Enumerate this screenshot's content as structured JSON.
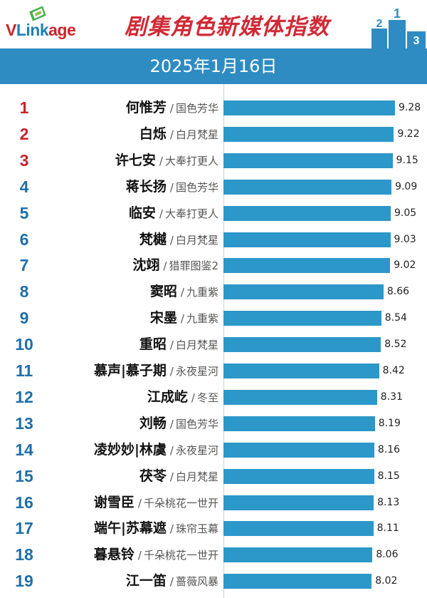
{
  "header": {
    "logo_v": "V",
    "logo_link": "Link",
    "logo_age": "age",
    "title": "剧集角色新媒体指数",
    "podium_first": "1",
    "podium_second": "2",
    "podium_third": "3"
  },
  "date": "2025年1月16日",
  "colors": {
    "title_red": "#d02a36",
    "date_bar": "#2f8cc2",
    "bar": "#2c97c9",
    "rank_top": "#c8242b",
    "rank_other": "#1f6fa8"
  },
  "chart_data": {
    "type": "bar",
    "orientation": "horizontal",
    "title": "剧集角色新媒体指数",
    "subtitle": "2025年1月16日",
    "xlabel": "",
    "ylabel": "",
    "xlim": [
      0,
      9.6
    ],
    "grid": false,
    "legend": "none",
    "rows": [
      {
        "rank": "1",
        "name": "何惟芳",
        "drama": "国色芳华",
        "value": 9.28
      },
      {
        "rank": "2",
        "name": "白烁",
        "drama": "白月梵星",
        "value": 9.22
      },
      {
        "rank": "3",
        "name": "许七安",
        "drama": "大奉打更人",
        "value": 9.15
      },
      {
        "rank": "4",
        "name": "蒋长扬",
        "drama": "国色芳华",
        "value": 9.09
      },
      {
        "rank": "5",
        "name": "临安",
        "drama": "大奉打更人",
        "value": 9.05
      },
      {
        "rank": "6",
        "name": "梵樾",
        "drama": "白月梵星",
        "value": 9.03
      },
      {
        "rank": "7",
        "name": "沈翊",
        "drama": "猎罪图鉴2",
        "value": 9.02
      },
      {
        "rank": "8",
        "name": "窦昭",
        "drama": "九重紫",
        "value": 8.66
      },
      {
        "rank": "9",
        "name": "宋墨",
        "drama": "九重紫",
        "value": 8.54
      },
      {
        "rank": "10",
        "name": "重昭",
        "drama": "白月梵星",
        "value": 8.52
      },
      {
        "rank": "11",
        "name": "慕声|慕子期",
        "drama": "永夜星河",
        "value": 8.42
      },
      {
        "rank": "12",
        "name": "江成屹",
        "drama": "冬至",
        "value": 8.31
      },
      {
        "rank": "13",
        "name": "刘畅",
        "drama": "国色芳华",
        "value": 8.19
      },
      {
        "rank": "14",
        "name": "凌妙妙|林虞",
        "drama": "永夜星河",
        "value": 8.16
      },
      {
        "rank": "15",
        "name": "茯苓",
        "drama": "白月梵星",
        "value": 8.15
      },
      {
        "rank": "16",
        "name": "谢雪臣",
        "drama": "千朵桃花一世开",
        "value": 8.13
      },
      {
        "rank": "17",
        "name": "端午|苏幕遮",
        "drama": "珠帘玉幕",
        "value": 8.11
      },
      {
        "rank": "18",
        "name": "暮悬铃",
        "drama": "千朵桃花一世开",
        "value": 8.06
      },
      {
        "rank": "19",
        "name": "江一笛",
        "drama": "蔷薇风暴",
        "value": 8.02
      }
    ]
  }
}
